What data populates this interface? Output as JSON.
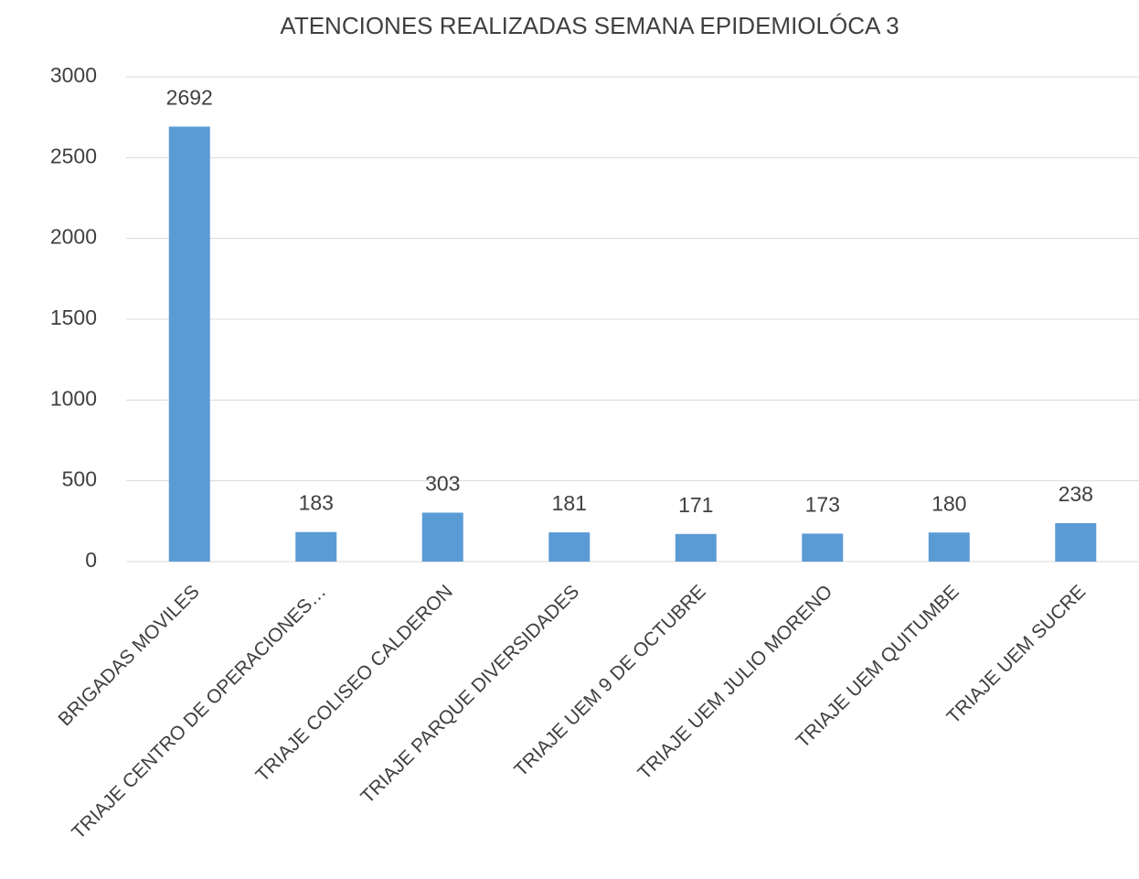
{
  "chart_data": {
    "type": "bar",
    "title": "ATENCIONES REALIZADAS SEMANA EPIDEMIOLÓCA 3",
    "categories": [
      "BRIGADAS MOVILES",
      "TRIAJE CENTRO DE OPERACIONES…",
      "TRIAJE COLISEO CALDERON",
      "TRIAJE PARQUE DIVERSIDADES",
      "TRIAJE UEM 9 DE OCTUBRE",
      "TRIAJE UEM JULIO MORENO",
      "TRIAJE UEM QUITUMBE",
      "TRIAJE UEM SUCRE"
    ],
    "values": [
      2692,
      183,
      303,
      181,
      171,
      173,
      180,
      238
    ],
    "color": "#5b9bd5",
    "ylim": [
      0,
      3000
    ],
    "yticks": [
      0,
      500,
      1000,
      1500,
      2000,
      2500,
      3000
    ],
    "grid": true
  }
}
